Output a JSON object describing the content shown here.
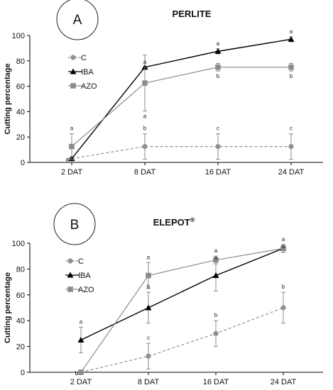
{
  "chart_data": [
    {
      "type": "line",
      "panel_label": "A",
      "title": "PERLITE",
      "title_superscript": "",
      "xlabel": "",
      "ylabel": "Cutting percentage",
      "ylim": [
        0,
        100
      ],
      "yticks": [
        0,
        20,
        40,
        60,
        80,
        100
      ],
      "categories": [
        "2 DAT",
        "8 DAT",
        "16 DAT",
        "24 DAT"
      ],
      "legend_position": "top-left",
      "series": [
        {
          "name": "C",
          "color": "#909090",
          "marker": "circle",
          "dashed": true,
          "values": [
            3,
            12.5,
            12.5,
            12.5
          ],
          "error": [
            0,
            10,
            10,
            10
          ],
          "letters": [
            "a",
            "b",
            "c",
            "c"
          ]
        },
        {
          "name": "IBA",
          "color": "#000000",
          "marker": "triangle",
          "dashed": false,
          "values": [
            3,
            75,
            87.5,
            97
          ],
          "error": [
            0,
            0,
            2,
            2
          ],
          "letters": [
            "a",
            "a",
            "a",
            "a"
          ]
        },
        {
          "name": "AZO",
          "color": "#8c8c8c",
          "marker": "square",
          "dashed": false,
          "values": [
            12.5,
            62.5,
            75,
            75
          ],
          "error": [
            10,
            22,
            3,
            3
          ],
          "letters": [
            "a",
            "a",
            "b",
            "b"
          ]
        }
      ]
    },
    {
      "type": "line",
      "panel_label": "B",
      "title": "ELEPOT",
      "title_superscript": "®",
      "xlabel": "",
      "ylabel": "Cutting percentage",
      "ylim": [
        0,
        100
      ],
      "yticks": [
        0,
        20,
        40,
        60,
        80,
        100
      ],
      "categories": [
        "2 DAT",
        "8 DAT",
        "16 DAT",
        "24 DAT"
      ],
      "legend_position": "top-left",
      "series": [
        {
          "name": "C",
          "color": "#909090",
          "marker": "circle",
          "dashed": true,
          "values": [
            0,
            12.5,
            30,
            50
          ],
          "error": [
            0,
            10,
            10,
            12
          ],
          "letters": [
            "b",
            "c",
            "b",
            "b"
          ]
        },
        {
          "name": "IBA",
          "color": "#000000",
          "marker": "triangle",
          "dashed": false,
          "values": [
            25,
            50,
            75,
            96
          ],
          "error": [
            10,
            12,
            12,
            3
          ],
          "letters": [
            "a",
            "b",
            "a",
            "a"
          ]
        },
        {
          "name": "AZO",
          "color": "#8c8c8c",
          "marker": "square",
          "dashed": false,
          "values": [
            0,
            75,
            87,
            96
          ],
          "error": [
            0,
            10,
            3,
            3
          ],
          "letters": [
            "b",
            "a",
            "a",
            "a"
          ]
        }
      ]
    }
  ]
}
